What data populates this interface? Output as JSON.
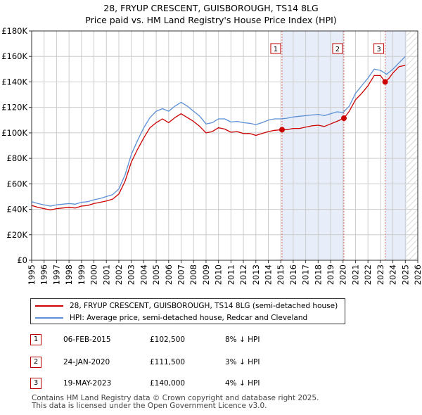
{
  "header": {
    "title_line1": "28, FRYUP CRESCENT, GUISBOROUGH, TS14 8LG",
    "title_line2": "Price paid vs. HM Land Registry's House Price Index (HPI)"
  },
  "colors": {
    "price_line": "#cc0000",
    "hpi_line": "#5b8fd6",
    "shade": "#e8eef9",
    "marker_line": "#dd6666",
    "grid": "#cccccc"
  },
  "chart_data": {
    "type": "line",
    "title": "28, FRYUP CRESCENT, GUISBOROUGH, TS14 8LG",
    "subtitle": "Price paid vs. HM Land Registry's House Price Index (HPI)",
    "xlabel": "",
    "ylabel": "",
    "xlim": [
      1995,
      2026
    ],
    "ylim": [
      0,
      180000
    ],
    "grid": true,
    "x_tick_labels": [
      "1995",
      "1996",
      "1997",
      "1998",
      "1999",
      "2000",
      "2001",
      "2002",
      "2003",
      "2004",
      "2005",
      "2006",
      "2007",
      "2008",
      "2009",
      "2010",
      "2011",
      "2012",
      "2013",
      "2014",
      "2015",
      "2016",
      "2017",
      "2018",
      "2019",
      "2020",
      "2021",
      "2022",
      "2023",
      "2024",
      "2025",
      "2026"
    ],
    "y_ticks": [
      0,
      20000,
      40000,
      60000,
      80000,
      100000,
      120000,
      140000,
      160000,
      180000
    ],
    "y_tick_labels": [
      "£0",
      "£20K",
      "£40K",
      "£60K",
      "£80K",
      "£100K",
      "£120K",
      "£140K",
      "£160K",
      "£180K"
    ],
    "shaded_ranges": [
      [
        2015.1,
        2020.07
      ],
      [
        2023.38,
        2025.1
      ]
    ],
    "hatched_from": 2025.1,
    "series": [
      {
        "name": "28, FRYUP CRESCENT, GUISBOROUGH, TS14 8LG (semi-detached house)",
        "x": [
          1995.0,
          1995.5,
          1996.0,
          1996.5,
          1997.0,
          1997.5,
          1998.0,
          1998.5,
          1999.0,
          1999.5,
          2000.0,
          2000.5,
          2001.0,
          2001.5,
          2002.0,
          2002.5,
          2003.0,
          2003.5,
          2004.0,
          2004.5,
          2005.0,
          2005.5,
          2006.0,
          2006.5,
          2007.0,
          2007.5,
          2008.0,
          2008.5,
          2009.0,
          2009.5,
          2010.0,
          2010.5,
          2011.0,
          2011.5,
          2012.0,
          2012.5,
          2013.0,
          2013.5,
          2014.0,
          2014.5,
          2015.1,
          2015.5,
          2016.0,
          2016.5,
          2017.0,
          2017.5,
          2018.0,
          2018.5,
          2019.0,
          2019.5,
          2020.07,
          2020.5,
          2021.0,
          2021.5,
          2022.0,
          2022.5,
          2023.0,
          2023.38,
          2023.7,
          2024.0,
          2024.5,
          2025.0
        ],
        "y": [
          43000,
          41500,
          40500,
          39500,
          40500,
          41000,
          41500,
          41000,
          42500,
          43000,
          44500,
          45500,
          46500,
          48000,
          52000,
          62000,
          77000,
          87000,
          96000,
          104000,
          108000,
          111000,
          108000,
          112000,
          115000,
          112000,
          109000,
          105000,
          100000,
          101000,
          104000,
          103000,
          100500,
          101000,
          99500,
          99500,
          98000,
          99500,
          101000,
          102000,
          102500,
          102500,
          103500,
          103500,
          104500,
          105500,
          106000,
          105000,
          107000,
          109000,
          111500,
          117000,
          126000,
          131000,
          137000,
          145000,
          145000,
          140000,
          143000,
          147000,
          152000,
          153000
        ]
      },
      {
        "name": "HPI: Average price, semi-detached house, Redcar and Cleveland",
        "x": [
          1995.0,
          1995.5,
          1996.0,
          1996.5,
          1997.0,
          1997.5,
          1998.0,
          1998.5,
          1999.0,
          1999.5,
          2000.0,
          2000.5,
          2001.0,
          2001.5,
          2002.0,
          2002.5,
          2003.0,
          2003.5,
          2004.0,
          2004.5,
          2005.0,
          2005.5,
          2006.0,
          2006.5,
          2007.0,
          2007.5,
          2008.0,
          2008.5,
          2009.0,
          2009.5,
          2010.0,
          2010.5,
          2011.0,
          2011.5,
          2012.0,
          2012.5,
          2013.0,
          2013.5,
          2014.0,
          2014.5,
          2015.0,
          2015.5,
          2016.0,
          2016.5,
          2017.0,
          2017.5,
          2018.0,
          2018.5,
          2019.0,
          2019.5,
          2020.0,
          2020.5,
          2021.0,
          2021.5,
          2022.0,
          2022.5,
          2023.0,
          2023.5,
          2024.0,
          2024.5,
          2025.0
        ],
        "y": [
          46000,
          44500,
          43500,
          42500,
          43500,
          44000,
          44500,
          44000,
          45500,
          46000,
          47500,
          48500,
          50000,
          51500,
          56000,
          67000,
          83000,
          94000,
          104000,
          112000,
          117000,
          119000,
          117000,
          121000,
          124000,
          121000,
          117000,
          113000,
          107000,
          108000,
          111000,
          111000,
          108500,
          109000,
          108000,
          107500,
          106500,
          108000,
          110000,
          111000,
          111000,
          111500,
          112500,
          113000,
          113500,
          114000,
          114500,
          113500,
          115000,
          116500,
          116000,
          121000,
          131000,
          137000,
          143000,
          150000,
          149000,
          146000,
          150000,
          155000,
          160000
        ]
      }
    ],
    "sales": [
      {
        "id": "1",
        "x": 2015.1,
        "value": 102500,
        "date": "06-FEB-2015",
        "price": "£102,500",
        "hpi_delta": "8% ↓ HPI"
      },
      {
        "id": "2",
        "x": 2020.07,
        "value": 111500,
        "date": "24-JAN-2020",
        "price": "£111,500",
        "hpi_delta": "3% ↓ HPI"
      },
      {
        "id": "3",
        "x": 2023.38,
        "value": 140000,
        "date": "19-MAY-2023",
        "price": "£140,000",
        "hpi_delta": "4% ↓ HPI"
      }
    ]
  },
  "legend": {
    "price_label": "28, FRYUP CRESCENT, GUISBOROUGH, TS14 8LG (semi-detached house)",
    "hpi_label": "HPI: Average price, semi-detached house, Redcar and Cleveland"
  },
  "sales_table": [
    {
      "id": "1",
      "date": "06-FEB-2015",
      "price": "£102,500",
      "hpi": "8% ↓ HPI"
    },
    {
      "id": "2",
      "date": "24-JAN-2020",
      "price": "£111,500",
      "hpi": "3% ↓ HPI"
    },
    {
      "id": "3",
      "date": "19-MAY-2023",
      "price": "£140,000",
      "hpi": "4% ↓ HPI"
    }
  ],
  "footer": {
    "line1": "Contains HM Land Registry data © Crown copyright and database right 2025.",
    "line2": "This data is licensed under the Open Government Licence v3.0."
  }
}
